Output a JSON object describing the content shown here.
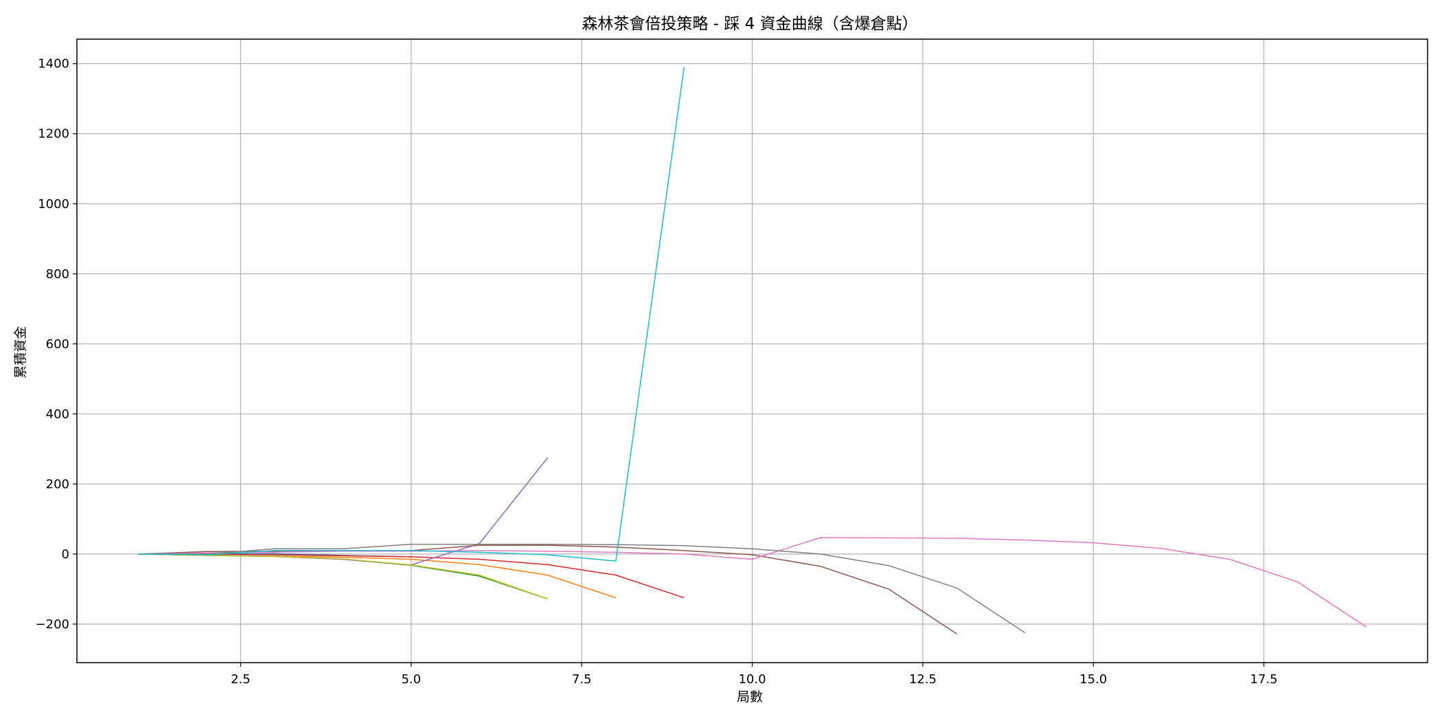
{
  "chart_data": {
    "type": "line",
    "title": "森林茶會倍投策略 - 踩 4 資金曲線（含爆倉點）",
    "xlabel": "局數",
    "ylabel": "累積資金",
    "xlim": [
      0.1,
      19.9
    ],
    "ylim": [
      -310,
      1470
    ],
    "xticks": [
      2.5,
      5.0,
      7.5,
      10.0,
      12.5,
      15.0,
      17.5
    ],
    "xtick_labels": [
      "2.5",
      "5.0",
      "7.5",
      "10.0",
      "12.5",
      "15.0",
      "17.5"
    ],
    "yticks": [
      -200,
      0,
      200,
      400,
      600,
      800,
      1000,
      1200,
      1400
    ],
    "ytick_labels": [
      "−200",
      "0",
      "200",
      "400",
      "600",
      "800",
      "1000",
      "1200",
      "1400"
    ],
    "grid": true,
    "series": [
      {
        "color": "#1f77b4",
        "x": [
          1,
          2,
          3,
          4,
          5
        ],
        "y": [
          0,
          0,
          1,
          -4,
          -8
        ]
      },
      {
        "color": "#ff7f0e",
        "x": [
          1,
          2,
          3,
          4,
          5,
          6,
          7,
          8
        ],
        "y": [
          0,
          -4,
          -6,
          -9,
          -15,
          -30,
          -60,
          -125
        ]
      },
      {
        "color": "#2ca02c",
        "x": [
          1,
          2,
          3,
          4,
          5,
          6,
          7
        ],
        "y": [
          0,
          -3,
          -7,
          -15,
          -32,
          -63,
          -128
        ]
      },
      {
        "color": "#d62728",
        "x": [
          1,
          2,
          3,
          4,
          5,
          6,
          7,
          8,
          9
        ],
        "y": [
          0,
          0,
          -2,
          -5,
          -8,
          -15,
          -30,
          -60,
          -125
        ]
      },
      {
        "color": "#9467bd",
        "x": [
          1,
          2,
          3,
          4,
          5,
          6,
          7
        ],
        "y": [
          0,
          -4,
          -7,
          -15,
          -31,
          30,
          275
        ]
      },
      {
        "color": "#8c564b",
        "x": [
          1,
          2,
          3,
          4,
          5,
          6,
          7,
          8,
          9,
          10,
          11,
          12,
          13
        ],
        "y": [
          0,
          7,
          8,
          10,
          10,
          25,
          25,
          20,
          10,
          -2,
          -35,
          -100,
          -228
        ]
      },
      {
        "color": "#e377c2",
        "x": [
          1,
          2,
          3,
          4,
          5,
          6,
          7,
          8,
          9,
          10,
          11,
          12,
          13,
          14,
          15,
          16,
          17,
          18,
          19
        ],
        "y": [
          0,
          3,
          5,
          8,
          8,
          10,
          8,
          5,
          0,
          -15,
          47,
          46,
          45,
          40,
          32,
          16,
          -15,
          -80,
          -208
        ]
      },
      {
        "color": "#7f7f7f",
        "x": [
          1,
          2,
          3,
          4,
          5,
          6,
          7,
          8,
          9,
          10,
          11,
          12,
          13,
          14
        ],
        "y": [
          0,
          0,
          15,
          15,
          28,
          28,
          28,
          27,
          24,
          15,
          0,
          -33,
          -97,
          -225
        ]
      },
      {
        "color": "#bcbd22",
        "x": [
          1,
          2,
          3,
          4,
          5,
          6,
          7
        ],
        "y": [
          0,
          -4,
          -7,
          -14,
          -31,
          -60,
          -128
        ]
      },
      {
        "color": "#17becf",
        "x": [
          1,
          2,
          3,
          4,
          5,
          6,
          7,
          8,
          9
        ],
        "y": [
          0,
          -2,
          10,
          10,
          10,
          5,
          -2,
          -20,
          1390
        ]
      }
    ]
  }
}
